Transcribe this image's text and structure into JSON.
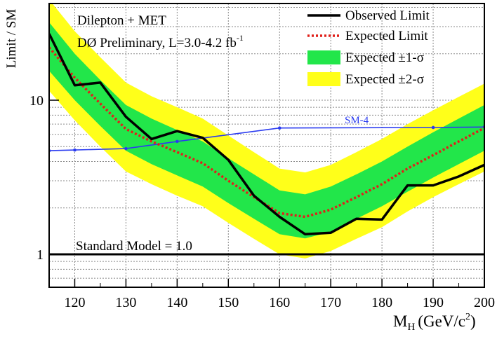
{
  "chart_data": {
    "type": "line",
    "title": "",
    "xlabel": "M",
    "xlabel_sub": "H",
    "xlabel_units": "(GeV/c",
    "xlabel_sup": "2",
    "xlabel_close": ")",
    "ylabel": "Limit / SM",
    "xlim": [
      115,
      200
    ],
    "ylim": [
      0.6,
      40
    ],
    "yscale": "log",
    "grid": true,
    "legend_position": "top-right",
    "x_ticks": [
      120,
      130,
      140,
      150,
      160,
      170,
      180,
      190,
      200
    ],
    "y_ticks": [
      1,
      10
    ],
    "annotations": {
      "line1": "Dilepton + MET",
      "line2_main": "DØ Preliminary, L=3.0-4.2 fb",
      "line2_sup": "-1",
      "sm_label": "Standard Model = 1.0",
      "sm4_label": "SM-4"
    },
    "legend": [
      {
        "key": "observed",
        "label": "Observed Limit"
      },
      {
        "key": "expected",
        "label": "Expected Limit"
      },
      {
        "key": "band1",
        "label": "Expected ±1-σ"
      },
      {
        "key": "band2",
        "label": "Expected ±2-σ"
      }
    ],
    "x": [
      115,
      120,
      125,
      130,
      135,
      140,
      145,
      150,
      155,
      160,
      165,
      170,
      175,
      180,
      185,
      190,
      195,
      200
    ],
    "series": [
      {
        "key": "observed",
        "values": [
          27,
          12.5,
          13,
          7.8,
          5.6,
          6.3,
          5.7,
          4.1,
          2.4,
          1.75,
          1.35,
          1.38,
          1.7,
          1.68,
          2.8,
          2.8,
          3.2,
          3.8
        ]
      },
      {
        "key": "expected",
        "values": [
          22,
          14,
          9.5,
          6.5,
          5.4,
          4.6,
          3.9,
          3.0,
          2.35,
          1.85,
          1.75,
          1.95,
          2.35,
          2.85,
          3.6,
          4.4,
          5.4,
          6.6
        ]
      },
      {
        "key": "band1_upper",
        "values": [
          32,
          20,
          13.5,
          9.3,
          7.6,
          6.4,
          5.4,
          4.2,
          3.3,
          2.6,
          2.45,
          2.75,
          3.3,
          4.0,
          5.0,
          6.2,
          7.6,
          9.3
        ]
      },
      {
        "key": "band1_lower",
        "values": [
          15.5,
          10,
          6.8,
          4.7,
          3.85,
          3.25,
          2.75,
          2.15,
          1.7,
          1.35,
          1.27,
          1.4,
          1.7,
          2.05,
          2.55,
          3.15,
          3.85,
          4.7
        ]
      },
      {
        "key": "band2_upper",
        "values": [
          45,
          28,
          19,
          13,
          10.6,
          9.0,
          7.6,
          5.9,
          4.6,
          3.6,
          3.4,
          3.8,
          4.6,
          5.6,
          7.0,
          8.6,
          10.5,
          12.8
        ]
      },
      {
        "key": "band2_lower",
        "values": [
          11.5,
          7.4,
          5.0,
          3.45,
          2.85,
          2.4,
          2.05,
          1.6,
          1.26,
          1.0,
          0.94,
          1.05,
          1.26,
          1.5,
          1.9,
          2.35,
          2.85,
          3.45
        ]
      },
      {
        "key": "sm",
        "values": [
          1,
          1,
          1,
          1,
          1,
          1,
          1,
          1,
          1,
          1,
          1,
          1,
          1,
          1,
          1,
          1,
          1,
          1
        ]
      }
    ],
    "sm4": {
      "x": [
        115,
        120,
        130,
        140,
        160,
        190,
        200
      ],
      "values": [
        4.7,
        4.75,
        4.85,
        5.4,
        6.6,
        6.65,
        6.7
      ]
    },
    "colors": {
      "observed": "#000000",
      "expected": "#e0201a",
      "band1": "#22e64a",
      "band2": "#ffff1a",
      "sm4": "#2b3cf0",
      "grid": "#8a8a8a"
    }
  }
}
